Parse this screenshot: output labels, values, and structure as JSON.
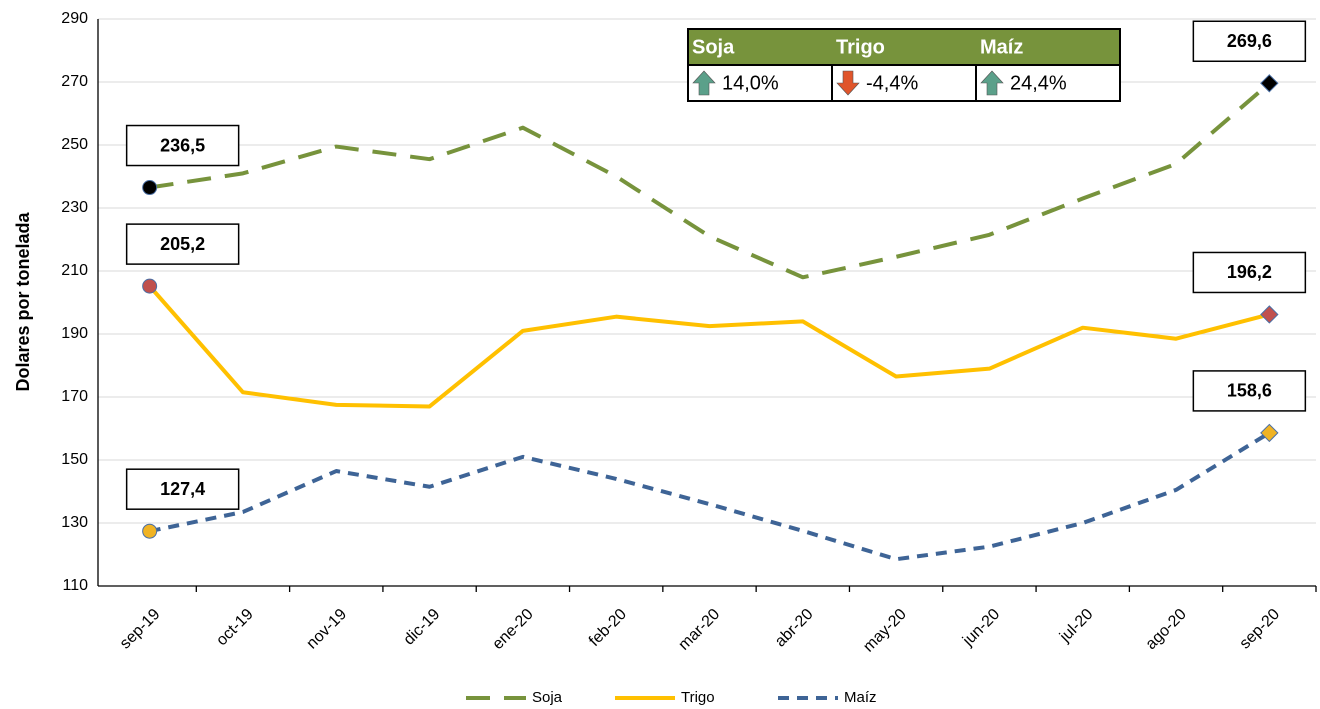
{
  "chart_data": {
    "type": "line",
    "y_label": "Dolares por tonelada",
    "categories": [
      "sep-19",
      "oct-19",
      "nov-19",
      "dic-19",
      "ene-20",
      "feb-20",
      "mar-20",
      "abr-20",
      "may-20",
      "jun-20",
      "jul-20",
      "ago-20",
      "sep-20"
    ],
    "series": [
      {
        "name": "Soja",
        "color": "#77933c",
        "line_style": "long-dash",
        "marker_color": "#000000",
        "values": [
          236.5,
          241,
          249.5,
          245.5,
          255.5,
          240,
          221,
          208,
          214.5,
          221.5,
          233,
          244,
          269.6
        ],
        "value_labels": [
          "236,5",
          null,
          null,
          null,
          null,
          null,
          null,
          null,
          null,
          null,
          null,
          null,
          "269,6"
        ]
      },
      {
        "name": "Trigo",
        "color": "#ffc000",
        "line_style": "solid",
        "marker_color": "#c0504d",
        "values": [
          205.2,
          171.5,
          167.5,
          167,
          191,
          195.5,
          192.5,
          194,
          176.5,
          179,
          192,
          188.5,
          196.2
        ],
        "value_labels": [
          "205,2",
          null,
          null,
          null,
          null,
          null,
          null,
          null,
          null,
          null,
          null,
          null,
          "196,2"
        ]
      },
      {
        "name": "Maíz",
        "color": "#3e6496",
        "line_style": "dash",
        "marker_color": "#f0b323",
        "values": [
          127.4,
          133.5,
          146.5,
          141.5,
          151,
          144,
          136,
          127.5,
          118.5,
          122.5,
          130,
          140.5,
          158.6
        ],
        "value_labels": [
          "127,4",
          null,
          null,
          null,
          null,
          null,
          null,
          null,
          null,
          null,
          null,
          null,
          "158,6"
        ]
      }
    ],
    "ylim": [
      110,
      290
    ],
    "yticks": [
      110,
      130,
      150,
      170,
      190,
      210,
      230,
      250,
      270,
      290
    ],
    "grid": true,
    "legend": "bottom",
    "summary_table": {
      "headers": [
        "Soja",
        "Trigo",
        "Maíz"
      ],
      "header_color": "#77933c",
      "values": [
        14.0,
        -4.4,
        24.4
      ],
      "value_labels": [
        "14,0%",
        "-4,4%",
        "24,4%"
      ]
    }
  }
}
